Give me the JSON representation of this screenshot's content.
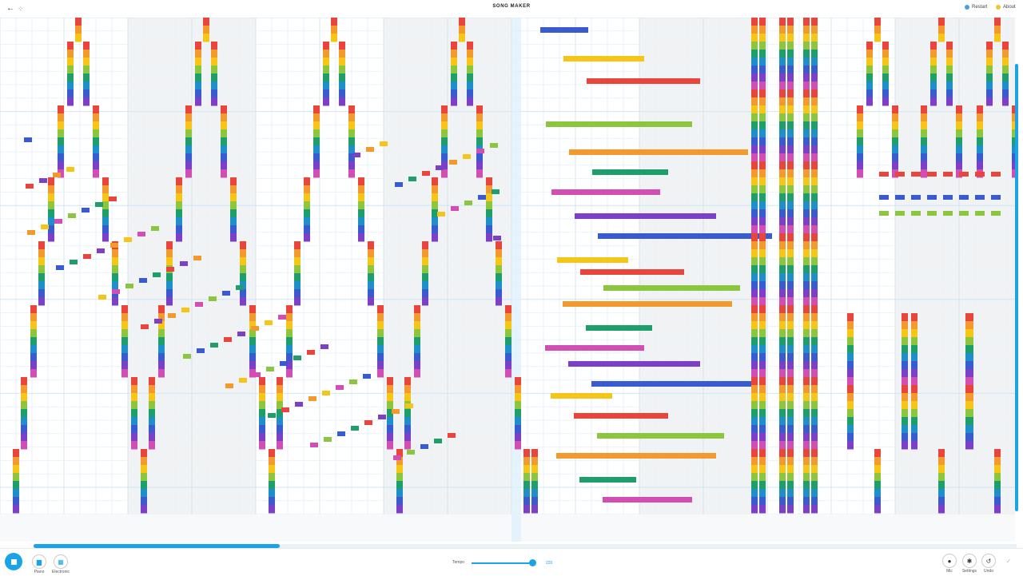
{
  "header": {
    "title": "SONG MAKER",
    "back_icon": "←",
    "move_icon": "⁘",
    "restart_label": "Restart",
    "about_label": "About",
    "restart_color": "#4a9fe0",
    "about_color": "#f4c430"
  },
  "toolbar": {
    "play_state": "playing",
    "instruments": [
      {
        "label": "Piano",
        "icon": "piano-icon"
      },
      {
        "label": "Electronic",
        "icon": "electronic-icon"
      }
    ],
    "tempo_label": "Tempo",
    "tempo_value": "220",
    "tempo_fraction": 0.93,
    "mic_label": "Mic",
    "settings_label": "Settings",
    "undo_label": "Undo",
    "confirm_icon": "✓",
    "scroll_progress": 0.25
  },
  "grid_meta": {
    "columns": 64,
    "melody_rows": 37,
    "percussion_rows": 2,
    "rainbow": [
      "#e8453c",
      "#f29a2e",
      "#f5c518",
      "#8cc63f",
      "#1e9e6a",
      "#1e8fc8",
      "#3a5bd0",
      "#7b3fc8",
      "#d14fb3"
    ]
  }
}
